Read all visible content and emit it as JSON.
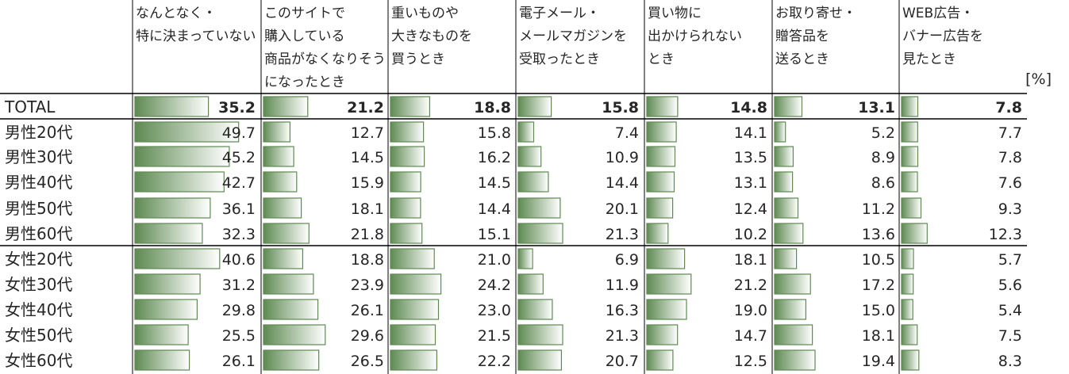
{
  "chart_data": {
    "type": "bar",
    "unit_label": "[%]",
    "columns": [
      {
        "lines": [
          "なんとなく・",
          "特に決まっていない"
        ]
      },
      {
        "lines": [
          "このサイトで",
          "購入している",
          "商品がなくなりそう",
          "になったとき"
        ]
      },
      {
        "lines": [
          "重いものや",
          "大きなものを",
          "買うとき"
        ]
      },
      {
        "lines": [
          "電子メール・",
          "メールマガジンを",
          "受取ったとき"
        ]
      },
      {
        "lines": [
          "買い物に",
          "出かけられない",
          "とき"
        ]
      },
      {
        "lines": [
          "お取り寄せ・",
          "贈答品を",
          "送るとき"
        ]
      },
      {
        "lines": [
          "WEB広告・",
          "バナー広告を",
          "見たとき"
        ]
      }
    ],
    "rows": [
      {
        "label": "TOTAL",
        "values": [
          "35.2",
          "21.2",
          "18.8",
          "15.8",
          "14.8",
          "13.1",
          "7.8"
        ]
      },
      {
        "label": "男性20代",
        "values": [
          "49.7",
          "12.7",
          "15.8",
          "7.4",
          "14.1",
          "5.2",
          "7.7"
        ]
      },
      {
        "label": "男性30代",
        "values": [
          "45.2",
          "14.5",
          "16.2",
          "10.9",
          "13.5",
          "8.9",
          "7.8"
        ]
      },
      {
        "label": "男性40代",
        "values": [
          "42.7",
          "15.9",
          "14.5",
          "14.4",
          "13.1",
          "8.6",
          "7.6"
        ]
      },
      {
        "label": "男性50代",
        "values": [
          "36.1",
          "18.1",
          "14.4",
          "20.1",
          "12.4",
          "11.2",
          "9.3"
        ]
      },
      {
        "label": "男性60代",
        "values": [
          "32.3",
          "21.8",
          "15.1",
          "21.3",
          "10.2",
          "13.6",
          "12.3"
        ]
      },
      {
        "label": "女性20代",
        "values": [
          "40.6",
          "18.8",
          "21.0",
          "6.9",
          "18.1",
          "10.5",
          "5.7"
        ]
      },
      {
        "label": "女性30代",
        "values": [
          "31.2",
          "23.9",
          "24.2",
          "11.9",
          "21.2",
          "17.2",
          "5.6"
        ]
      },
      {
        "label": "女性40代",
        "values": [
          "29.8",
          "26.1",
          "23.0",
          "16.3",
          "19.0",
          "15.0",
          "5.4"
        ]
      },
      {
        "label": "女性50代",
        "values": [
          "25.5",
          "29.6",
          "21.5",
          "21.3",
          "14.7",
          "18.1",
          "7.5"
        ]
      },
      {
        "label": "女性60代",
        "values": [
          "26.1",
          "26.5",
          "22.2",
          "20.7",
          "12.5",
          "19.4",
          "8.3"
        ]
      }
    ],
    "colors": {
      "bar_dark": "#5e8a52",
      "bar_light": "#ffffff",
      "bar_border": "#5e8a52",
      "rule": "#000000",
      "grid": "#000000"
    }
  }
}
